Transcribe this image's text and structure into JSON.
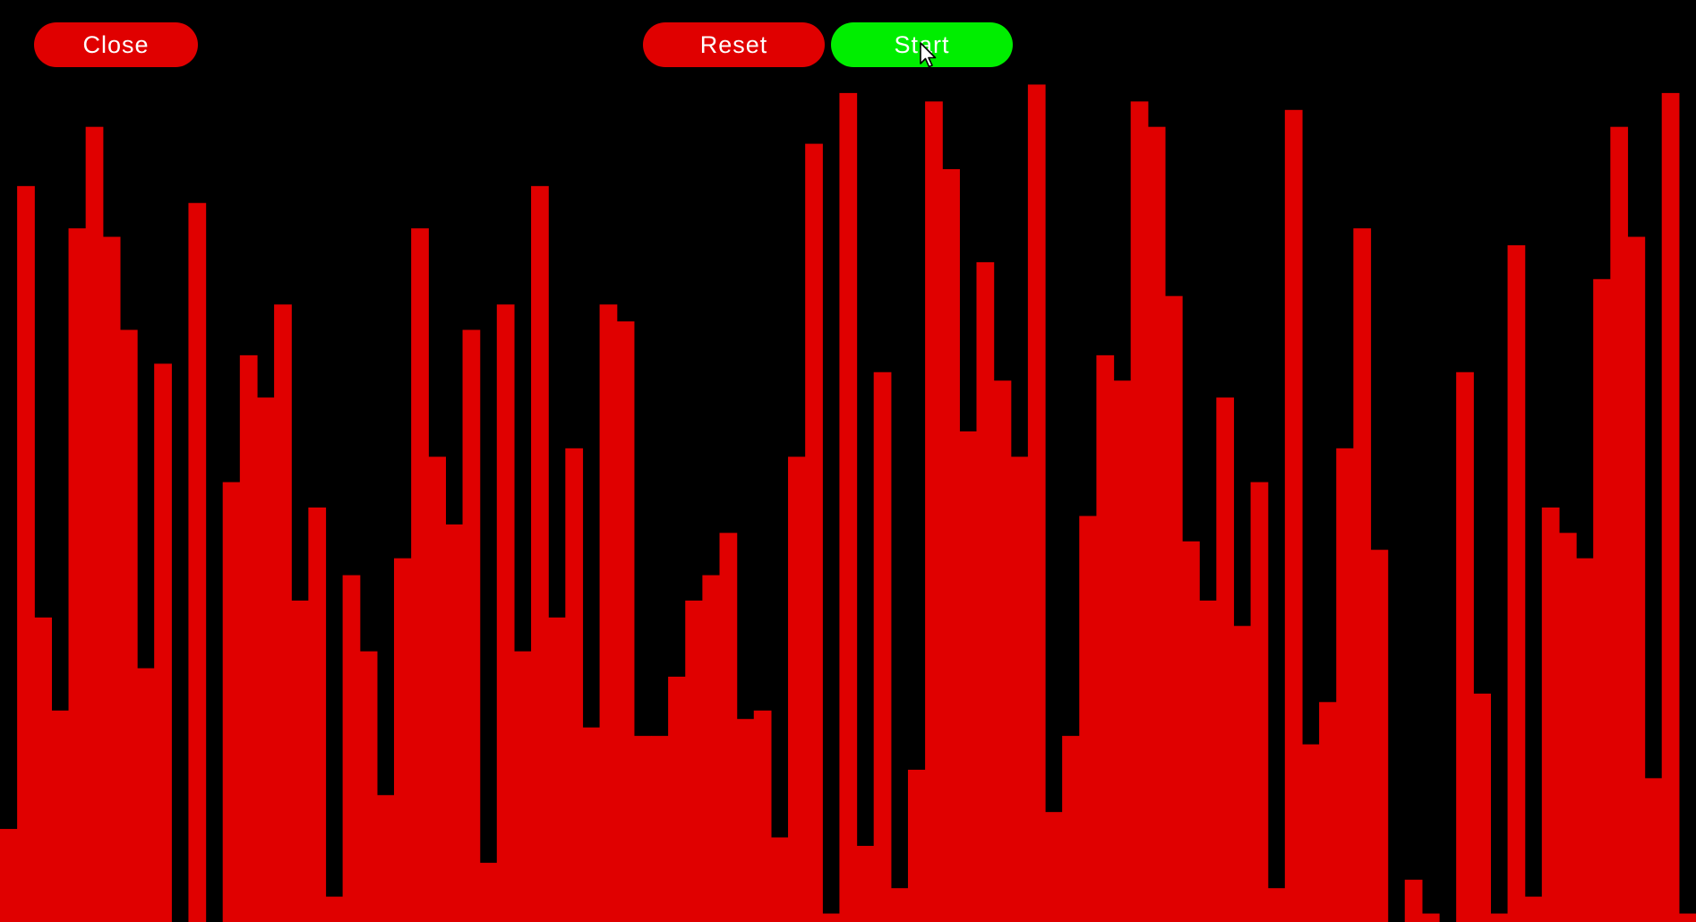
{
  "buttons": {
    "close": {
      "label": "Close",
      "color": "#e00000"
    },
    "reset": {
      "label": "Reset",
      "color": "#e00000"
    },
    "start": {
      "label": "Start",
      "color": "#00ee00"
    }
  },
  "colors": {
    "background": "#000000",
    "bar": "#e00000",
    "button_text": "#ffffff"
  },
  "cursor": {
    "icon": "mouse-pointer-icon"
  },
  "chart_data": {
    "type": "bar",
    "title": "",
    "xlabel": "",
    "ylabel": "",
    "ylim": [
      0,
      100
    ],
    "grid": false,
    "values": [
      11,
      87,
      36,
      25,
      82,
      94,
      81,
      70,
      30,
      66,
      0,
      85,
      0,
      52,
      67,
      62,
      73,
      38,
      49,
      3,
      41,
      32,
      15,
      43,
      82,
      55,
      47,
      70,
      7,
      73,
      32,
      87,
      36,
      56,
      23,
      73,
      71,
      22,
      22,
      29,
      38,
      41,
      46,
      24,
      25,
      10,
      55,
      92,
      1,
      98,
      9,
      65,
      4,
      18,
      97,
      89,
      58,
      78,
      64,
      55,
      99,
      13,
      22,
      48,
      67,
      64,
      97,
      94,
      74,
      45,
      38,
      62,
      35,
      52,
      4,
      96,
      21,
      26,
      56,
      82,
      44,
      0,
      5,
      1,
      0,
      65,
      27,
      1,
      80,
      3,
      49,
      46,
      43,
      76,
      94,
      81,
      17,
      98,
      1
    ]
  }
}
